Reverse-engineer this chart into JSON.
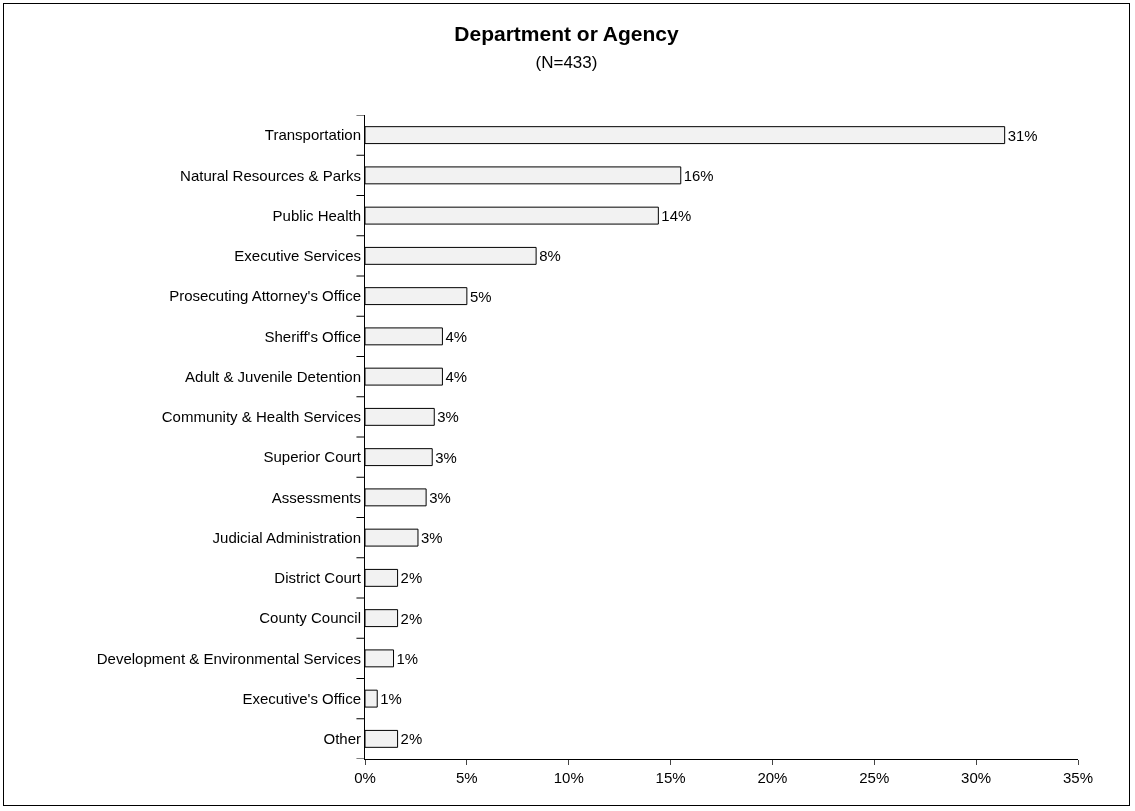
{
  "chart_data": {
    "type": "bar",
    "orientation": "horizontal",
    "title": "Department or Agency",
    "subtitle": "(N=433)",
    "categories": [
      "Transportation",
      "Natural Resources & Parks",
      "Public Health",
      "Executive Services",
      "Prosecuting Attorney's Office",
      "Sheriff's Office",
      "Adult & Juvenile Detention",
      "Community & Health Services",
      "Superior Court",
      "Assessments",
      "Judicial Administration",
      "District Court",
      "County Council",
      "Development & Environmental Services",
      "Executive's Office",
      "Other"
    ],
    "values": [
      31.4,
      15.5,
      14.4,
      8.4,
      5.0,
      3.8,
      3.8,
      3.4,
      3.3,
      3.0,
      2.6,
      1.6,
      1.6,
      1.4,
      0.6,
      1.6
    ],
    "value_labels": [
      "31%",
      "16%",
      "14%",
      "8%",
      "5%",
      "4%",
      "4%",
      "3%",
      "3%",
      "3%",
      "3%",
      "2%",
      "2%",
      "1%",
      "1%",
      "2%"
    ],
    "color": "#f2f2f2",
    "xlim": [
      0,
      35
    ],
    "xticks": [
      {
        "value": 0,
        "label": "0%"
      },
      {
        "value": 5,
        "label": "5%"
      },
      {
        "value": 10,
        "label": "10%"
      },
      {
        "value": 15,
        "label": "15%"
      },
      {
        "value": 20,
        "label": "20%"
      },
      {
        "value": 25,
        "label": "25%"
      },
      {
        "value": 30,
        "label": "30%"
      },
      {
        "value": 35,
        "label": "35%"
      }
    ],
    "grid": false
  }
}
